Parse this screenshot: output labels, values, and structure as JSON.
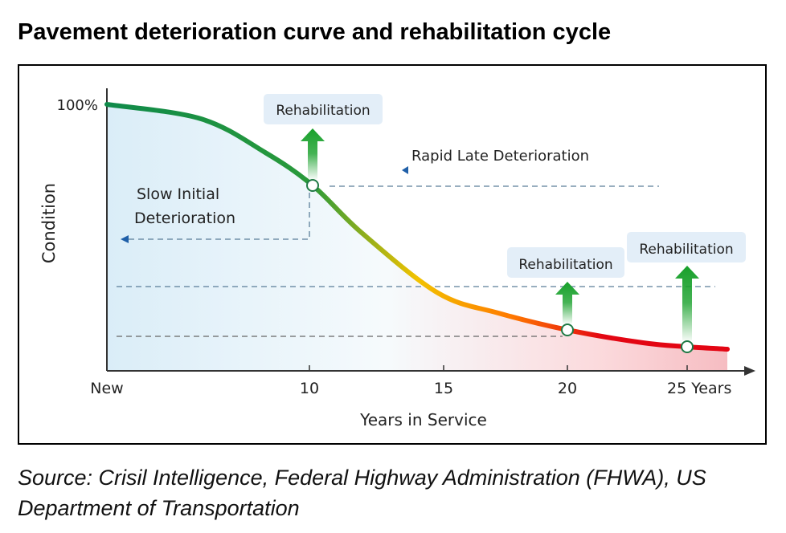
{
  "title": "Pavement deterioration curve and rehabilitation cycle",
  "source": "Source: Crisil Intelligence, Federal Highway Administration (FHWA), US Department of Transportation",
  "chart_data": {
    "type": "line",
    "xlabel": "Years in Service",
    "ylabel": "Condition",
    "y_top_label": "100%",
    "x_ticks": [
      {
        "value": 0,
        "label": "New"
      },
      {
        "value": 10,
        "label": "10"
      },
      {
        "value": 15,
        "label": "15"
      },
      {
        "value": 20,
        "label": "20"
      },
      {
        "value": 25,
        "label": "25 Years"
      }
    ],
    "ylim": [
      0,
      100
    ],
    "series": [
      {
        "name": "Condition",
        "x": [
          0,
          3,
          6,
          8,
          10,
          12,
          15,
          17.5,
          20,
          25,
          26.5
        ],
        "y": [
          100,
          94,
          82,
          70,
          70,
          52,
          30,
          22,
          15,
          9,
          8
        ]
      }
    ],
    "rehab_points": [
      {
        "x": 10,
        "y": 70,
        "label": "Rehabilitation"
      },
      {
        "x": 20,
        "y": 15,
        "label": "Rehabilitation"
      },
      {
        "x": 25,
        "y": 9,
        "label": "Rehabilitation"
      }
    ],
    "annotations": [
      "Slow Initial Deterioration",
      "Rapid Late Deterioration"
    ],
    "colors": {
      "good": "#0f8a4a",
      "mid": "#f2c200",
      "bad": "#e30613",
      "arrow": "#17a02a"
    }
  }
}
